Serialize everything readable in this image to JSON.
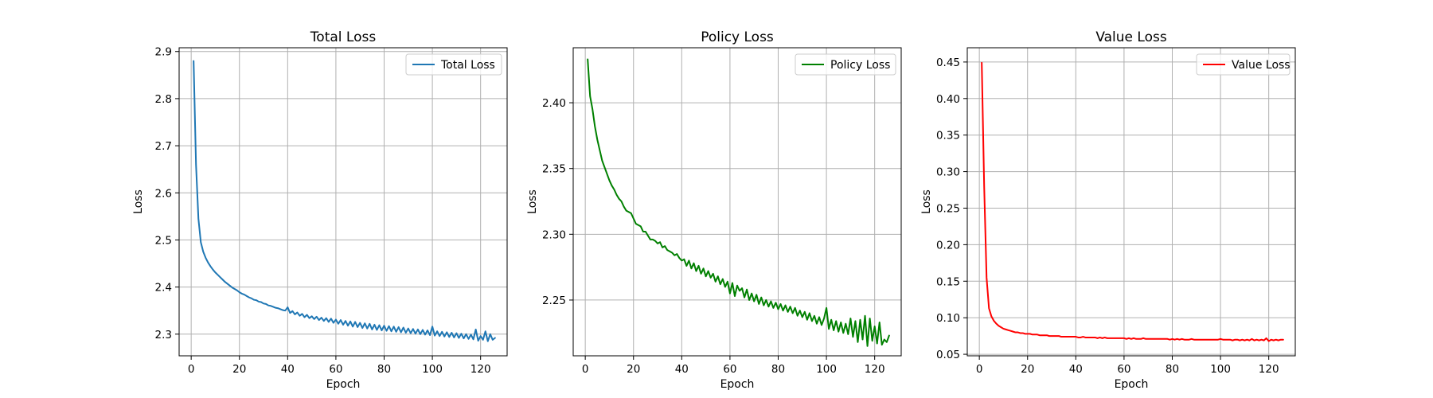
{
  "chart_data": [
    {
      "type": "line",
      "title": "Total Loss",
      "xlabel": "Epoch",
      "ylabel": "Loss",
      "xlim": [
        -5,
        131
      ],
      "ylim": [
        2.254,
        2.908
      ],
      "xticks": [
        0,
        20,
        40,
        60,
        80,
        100,
        120
      ],
      "yticks": [
        2.3,
        2.4,
        2.5,
        2.6,
        2.7,
        2.8,
        2.9
      ],
      "ytick_labels": [
        "2.3",
        "2.4",
        "2.5",
        "2.6",
        "2.7",
        "2.8",
        "2.9"
      ],
      "grid": true,
      "legend": "top-right",
      "series": [
        {
          "name": "Total Loss",
          "color": "#1f77b4",
          "x": [
            1,
            2,
            3,
            4,
            5,
            6,
            7,
            8,
            9,
            10,
            11,
            12,
            13,
            14,
            15,
            16,
            17,
            18,
            19,
            20,
            21,
            22,
            23,
            24,
            25,
            26,
            27,
            28,
            29,
            30,
            31,
            32,
            33,
            34,
            35,
            36,
            37,
            38,
            39,
            40,
            41,
            42,
            43,
            44,
            45,
            46,
            47,
            48,
            49,
            50,
            51,
            52,
            53,
            54,
            55,
            56,
            57,
            58,
            59,
            60,
            61,
            62,
            63,
            64,
            65,
            66,
            67,
            68,
            69,
            70,
            71,
            72,
            73,
            74,
            75,
            76,
            77,
            78,
            79,
            80,
            81,
            82,
            83,
            84,
            85,
            86,
            87,
            88,
            89,
            90,
            91,
            92,
            93,
            94,
            95,
            96,
            97,
            98,
            99,
            100,
            101,
            102,
            103,
            104,
            105,
            106,
            107,
            108,
            109,
            110,
            111,
            112,
            113,
            114,
            115,
            116,
            117,
            118,
            119,
            120,
            121,
            122,
            123,
            124,
            125,
            126
          ],
          "y": [
            2.88,
            2.66,
            2.545,
            2.495,
            2.475,
            2.462,
            2.452,
            2.444,
            2.437,
            2.431,
            2.426,
            2.421,
            2.416,
            2.411,
            2.407,
            2.403,
            2.399,
            2.396,
            2.393,
            2.389,
            2.386,
            2.384,
            2.381,
            2.378,
            2.376,
            2.373,
            2.372,
            2.369,
            2.368,
            2.365,
            2.364,
            2.361,
            2.36,
            2.358,
            2.356,
            2.355,
            2.353,
            2.351,
            2.35,
            2.357,
            2.345,
            2.349,
            2.342,
            2.346,
            2.339,
            2.343,
            2.336,
            2.341,
            2.334,
            2.338,
            2.332,
            2.337,
            2.33,
            2.335,
            2.328,
            2.334,
            2.326,
            2.333,
            2.324,
            2.331,
            2.322,
            2.33,
            2.32,
            2.328,
            2.318,
            2.327,
            2.316,
            2.326,
            2.315,
            2.324,
            2.313,
            2.323,
            2.312,
            2.322,
            2.31,
            2.32,
            2.309,
            2.319,
            2.308,
            2.318,
            2.307,
            2.317,
            2.306,
            2.316,
            2.305,
            2.315,
            2.304,
            2.314,
            2.303,
            2.312,
            2.302,
            2.311,
            2.301,
            2.31,
            2.3,
            2.309,
            2.299,
            2.308,
            2.298,
            2.316,
            2.297,
            2.306,
            2.296,
            2.305,
            2.295,
            2.304,
            2.294,
            2.303,
            2.293,
            2.302,
            2.292,
            2.301,
            2.291,
            2.3,
            2.29,
            2.299,
            2.289,
            2.31,
            2.286,
            2.296,
            2.288,
            2.306,
            2.285,
            2.3,
            2.288,
            2.292
          ]
        }
      ]
    },
    {
      "type": "line",
      "title": "Policy Loss",
      "xlabel": "Epoch",
      "ylabel": "Loss",
      "xlim": [
        -5,
        131
      ],
      "ylim": [
        2.2076,
        2.4418
      ],
      "xticks": [
        0,
        20,
        40,
        60,
        80,
        100,
        120
      ],
      "yticks": [
        2.25,
        2.3,
        2.35,
        2.4
      ],
      "ytick_labels": [
        "2.25",
        "2.30",
        "2.35",
        "2.40"
      ],
      "grid": true,
      "legend": "top-right",
      "series": [
        {
          "name": "Policy Loss",
          "color": "#008000",
          "x": [
            1,
            2,
            3,
            4,
            5,
            6,
            7,
            8,
            9,
            10,
            11,
            12,
            13,
            14,
            15,
            16,
            17,
            18,
            19,
            20,
            21,
            22,
            23,
            24,
            25,
            26,
            27,
            28,
            29,
            30,
            31,
            32,
            33,
            34,
            35,
            36,
            37,
            38,
            39,
            40,
            41,
            42,
            43,
            44,
            45,
            46,
            47,
            48,
            49,
            50,
            51,
            52,
            53,
            54,
            55,
            56,
            57,
            58,
            59,
            60,
            61,
            62,
            63,
            64,
            65,
            66,
            67,
            68,
            69,
            70,
            71,
            72,
            73,
            74,
            75,
            76,
            77,
            78,
            79,
            80,
            81,
            82,
            83,
            84,
            85,
            86,
            87,
            88,
            89,
            90,
            91,
            92,
            93,
            94,
            95,
            96,
            97,
            98,
            99,
            100,
            101,
            102,
            103,
            104,
            105,
            106,
            107,
            108,
            109,
            110,
            111,
            112,
            113,
            114,
            115,
            116,
            117,
            118,
            119,
            120,
            121,
            122,
            123,
            124,
            125,
            126
          ],
          "y": [
            2.433,
            2.405,
            2.395,
            2.382,
            2.372,
            2.364,
            2.356,
            2.351,
            2.346,
            2.341,
            2.337,
            2.334,
            2.33,
            2.327,
            2.325,
            2.321,
            2.318,
            2.317,
            2.316,
            2.312,
            2.308,
            2.307,
            2.306,
            2.302,
            2.302,
            2.299,
            2.296,
            2.296,
            2.295,
            2.293,
            2.294,
            2.29,
            2.291,
            2.288,
            2.287,
            2.286,
            2.284,
            2.285,
            2.282,
            2.28,
            2.281,
            2.276,
            2.28,
            2.274,
            2.278,
            2.272,
            2.276,
            2.27,
            2.274,
            2.268,
            2.272,
            2.267,
            2.27,
            2.264,
            2.268,
            2.262,
            2.266,
            2.26,
            2.264,
            2.255,
            2.263,
            2.253,
            2.261,
            2.257,
            2.259,
            2.252,
            2.258,
            2.25,
            2.255,
            2.249,
            2.254,
            2.247,
            2.252,
            2.246,
            2.25,
            2.245,
            2.249,
            2.244,
            2.248,
            2.243,
            2.247,
            2.242,
            2.246,
            2.241,
            2.245,
            2.24,
            2.244,
            2.238,
            2.242,
            2.237,
            2.241,
            2.235,
            2.24,
            2.234,
            2.238,
            2.232,
            2.237,
            2.231,
            2.236,
            2.244,
            2.228,
            2.235,
            2.227,
            2.234,
            2.226,
            2.233,
            2.225,
            2.232,
            2.224,
            2.236,
            2.222,
            2.234,
            2.218,
            2.235,
            2.22,
            2.238,
            2.215,
            2.236,
            2.219,
            2.23,
            2.217,
            2.233,
            2.216,
            2.22,
            2.218,
            2.223
          ]
        }
      ]
    },
    {
      "type": "line",
      "title": "Value Loss",
      "xlabel": "Epoch",
      "ylabel": "Loss",
      "xlim": [
        -5,
        131
      ],
      "ylim": [
        0.0479,
        0.4695
      ],
      "xticks": [
        0,
        20,
        40,
        60,
        80,
        100,
        120
      ],
      "yticks": [
        0.05,
        0.1,
        0.15,
        0.2,
        0.25,
        0.3,
        0.35,
        0.4,
        0.45
      ],
      "ytick_labels": [
        "0.05",
        "0.10",
        "0.15",
        "0.20",
        "0.25",
        "0.30",
        "0.35",
        "0.40",
        "0.45"
      ],
      "grid": true,
      "legend": "top-right",
      "series": [
        {
          "name": "Value Loss",
          "color": "#ff0000",
          "x": [
            1,
            2,
            3,
            4,
            5,
            6,
            7,
            8,
            9,
            10,
            11,
            12,
            13,
            14,
            15,
            16,
            17,
            18,
            19,
            20,
            21,
            22,
            23,
            24,
            25,
            26,
            27,
            28,
            29,
            30,
            31,
            32,
            33,
            34,
            35,
            36,
            37,
            38,
            39,
            40,
            41,
            42,
            43,
            44,
            45,
            46,
            47,
            48,
            49,
            50,
            51,
            52,
            53,
            54,
            55,
            56,
            57,
            58,
            59,
            60,
            61,
            62,
            63,
            64,
            65,
            66,
            67,
            68,
            69,
            70,
            71,
            72,
            73,
            74,
            75,
            76,
            77,
            78,
            79,
            80,
            81,
            82,
            83,
            84,
            85,
            86,
            87,
            88,
            89,
            90,
            91,
            92,
            93,
            94,
            95,
            96,
            97,
            98,
            99,
            100,
            101,
            102,
            103,
            104,
            105,
            106,
            107,
            108,
            109,
            110,
            111,
            112,
            113,
            114,
            115,
            116,
            117,
            118,
            119,
            120,
            121,
            122,
            123,
            124,
            125,
            126
          ],
          "y": [
            0.449,
            0.28,
            0.155,
            0.113,
            0.102,
            0.096,
            0.092,
            0.089,
            0.087,
            0.085,
            0.084,
            0.083,
            0.082,
            0.081,
            0.08,
            0.08,
            0.079,
            0.079,
            0.078,
            0.078,
            0.078,
            0.077,
            0.077,
            0.077,
            0.076,
            0.076,
            0.076,
            0.076,
            0.075,
            0.075,
            0.075,
            0.075,
            0.075,
            0.074,
            0.074,
            0.074,
            0.074,
            0.074,
            0.074,
            0.074,
            0.073,
            0.073,
            0.074,
            0.073,
            0.073,
            0.073,
            0.073,
            0.073,
            0.072,
            0.073,
            0.072,
            0.073,
            0.072,
            0.072,
            0.072,
            0.072,
            0.072,
            0.072,
            0.072,
            0.072,
            0.071,
            0.072,
            0.071,
            0.072,
            0.071,
            0.071,
            0.071,
            0.072,
            0.071,
            0.071,
            0.071,
            0.071,
            0.071,
            0.071,
            0.071,
            0.071,
            0.071,
            0.071,
            0.07,
            0.071,
            0.07,
            0.071,
            0.07,
            0.071,
            0.07,
            0.07,
            0.07,
            0.071,
            0.07,
            0.07,
            0.07,
            0.07,
            0.07,
            0.07,
            0.07,
            0.07,
            0.07,
            0.07,
            0.07,
            0.071,
            0.07,
            0.07,
            0.07,
            0.07,
            0.069,
            0.07,
            0.07,
            0.069,
            0.07,
            0.069,
            0.07,
            0.069,
            0.071,
            0.069,
            0.07,
            0.069,
            0.07,
            0.069,
            0.072,
            0.068,
            0.07,
            0.069,
            0.07,
            0.069,
            0.07,
            0.07
          ]
        }
      ]
    }
  ]
}
